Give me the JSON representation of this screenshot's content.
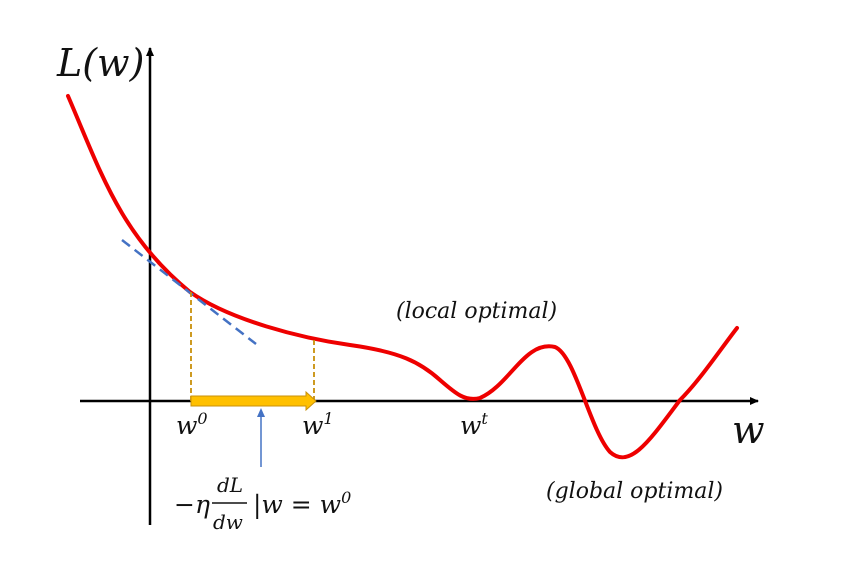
{
  "diagram": {
    "y_axis_label": "L(w)",
    "x_axis_label": "w",
    "points": {
      "w0": {
        "base": "w",
        "sup": "0"
      },
      "w1": {
        "base": "w",
        "sup": "1"
      },
      "wt": {
        "base": "w",
        "sup": "t"
      }
    },
    "annotations": {
      "local": "(local optimal)",
      "global": "(global optimal)"
    },
    "step_formula": {
      "prefix": "−η",
      "numerator": "dL",
      "denominator": "dw",
      "suffix_main": "|w = w",
      "suffix_sup": "0"
    },
    "colors": {
      "curve": "#ee0000",
      "tangent": "#4472c4",
      "guides": "#c8900a",
      "step_arrow": "#ffc000",
      "pointer_arrow": "#4472c4",
      "axes": "#000000"
    }
  }
}
